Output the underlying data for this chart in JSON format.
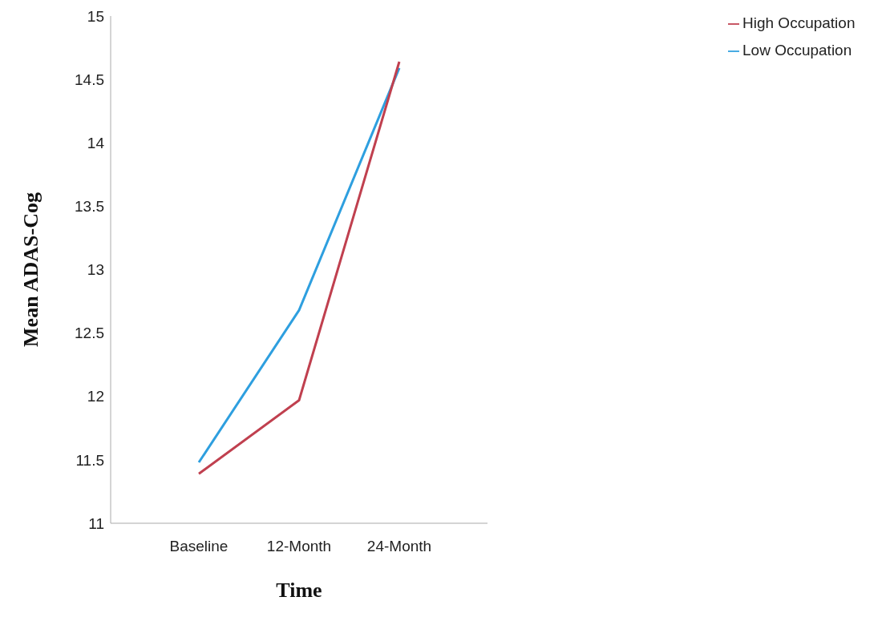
{
  "chart_data": {
    "type": "line",
    "xlabel": "Time",
    "ylabel": "Mean ADAS-Cog",
    "categories": [
      "Baseline",
      "12-Month",
      "24-Month"
    ],
    "series": [
      {
        "name": "Low Occupation",
        "color": "#2e9fdf",
        "values": [
          11.48,
          12.68,
          14.59
        ]
      },
      {
        "name": "High Occupation",
        "color": "#c0404f",
        "values": [
          11.39,
          11.97,
          14.64
        ]
      }
    ],
    "ylim": [
      11,
      15
    ],
    "yticks": [
      11,
      11.5,
      12,
      12.5,
      13,
      13.5,
      14,
      14.5,
      15
    ],
    "grid": false,
    "legend": "top right",
    "marker": "none",
    "line_style": "solid"
  }
}
